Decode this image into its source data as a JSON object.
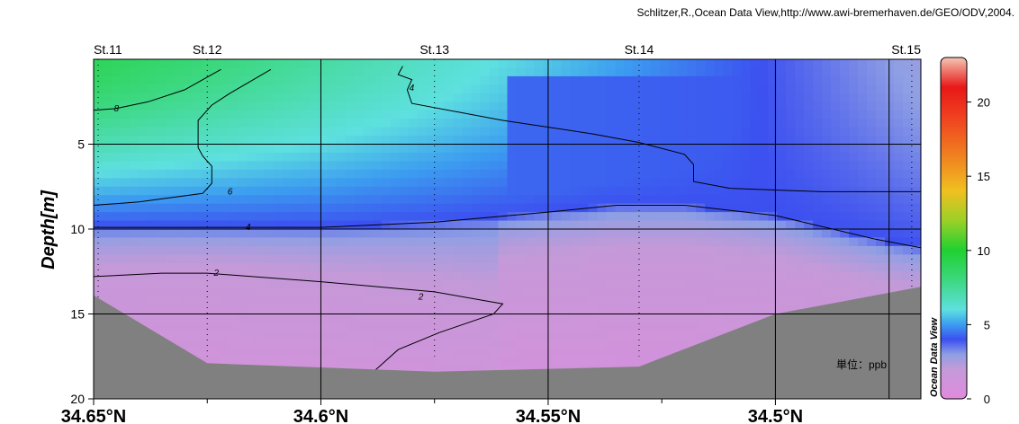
{
  "credit": "Schlitzer,R.,Ocean Data View,http://www.awi-bremerhaven.de/GEO/ODV,2004.",
  "chart_data": {
    "type": "heatmap",
    "ylabel": "Depth[m]",
    "xlabel": "",
    "xlim": [
      34.65,
      34.468
    ],
    "ylim": [
      20,
      0
    ],
    "x_ticks": [
      {
        "value": 34.65,
        "label": "34.65°N"
      },
      {
        "value": 34.6,
        "label": "34.6°N"
      },
      {
        "value": 34.55,
        "label": "34.55°N"
      },
      {
        "value": 34.5,
        "label": "34.5°N"
      }
    ],
    "y_ticks": [
      {
        "value": 5,
        "label": "5"
      },
      {
        "value": 10,
        "label": "10"
      },
      {
        "value": 15,
        "label": "15"
      },
      {
        "value": 20,
        "label": "20"
      }
    ],
    "stations": [
      {
        "name": "St.11",
        "lat": 34.649
      },
      {
        "name": "St.12",
        "lat": 34.625
      },
      {
        "name": "St.13",
        "lat": 34.575
      },
      {
        "name": "St.14",
        "lat": 34.53
      },
      {
        "name": "St.15",
        "lat": 34.47
      }
    ],
    "bottom_profile": [
      {
        "lat": 34.65,
        "depth": 13.9
      },
      {
        "lat": 34.625,
        "depth": 17.9
      },
      {
        "lat": 34.575,
        "depth": 18.4
      },
      {
        "lat": 34.53,
        "depth": 18.1
      },
      {
        "lat": 34.5,
        "depth": 15.0
      },
      {
        "lat": 34.468,
        "depth": 13.4
      }
    ],
    "contours": [
      {
        "level": 8,
        "label": "8",
        "label_at": [
          34.645,
          2.9
        ],
        "points": [
          [
            34.65,
            3.0
          ],
          [
            34.645,
            2.9
          ],
          [
            34.638,
            2.5
          ],
          [
            34.63,
            1.8
          ],
          [
            34.622,
            0.6
          ]
        ]
      },
      {
        "level": 6,
        "label": "6",
        "label_at": [
          34.62,
          7.8
        ],
        "points": [
          [
            34.65,
            8.6
          ],
          [
            34.64,
            8.4
          ],
          [
            34.626,
            7.9
          ],
          [
            34.624,
            7.3
          ],
          [
            34.624,
            6.3
          ],
          [
            34.626,
            5.7
          ],
          [
            34.627,
            5.2
          ],
          [
            34.627,
            3.6
          ],
          [
            34.624,
            2.7
          ],
          [
            34.62,
            2.0
          ],
          [
            34.611,
            0.6
          ]
        ]
      },
      {
        "level": 4,
        "label": "4",
        "label_at": [
          34.616,
          9.9
        ],
        "points": [
          [
            34.65,
            9.9
          ],
          [
            34.625,
            9.9
          ],
          [
            34.6,
            9.9
          ],
          [
            34.575,
            9.6
          ],
          [
            34.55,
            9.0
          ],
          [
            34.535,
            8.6
          ],
          [
            34.52,
            8.6
          ],
          [
            34.5,
            9.2
          ],
          [
            34.478,
            10.6
          ],
          [
            34.468,
            11.1
          ]
        ]
      },
      {
        "level": 4,
        "label": "4",
        "label_at": [
          34.58,
          1.7
        ],
        "points": [
          [
            34.582,
            0.4
          ],
          [
            34.583,
            0.9
          ],
          [
            34.58,
            1.2
          ],
          [
            34.581,
            1.8
          ],
          [
            34.58,
            2.6
          ],
          [
            34.56,
            3.6
          ],
          [
            34.54,
            4.4
          ],
          [
            34.53,
            4.9
          ],
          [
            34.52,
            5.6
          ],
          [
            34.518,
            6.2
          ],
          [
            34.518,
            7.2
          ],
          [
            34.51,
            7.6
          ],
          [
            34.49,
            7.8
          ],
          [
            34.468,
            7.8
          ]
        ]
      },
      {
        "level": 2,
        "label": "2",
        "label_at": [
          34.623,
          12.6
        ],
        "points": [
          [
            34.65,
            12.8
          ],
          [
            34.635,
            12.6
          ],
          [
            34.625,
            12.6
          ],
          [
            34.6,
            13.1
          ],
          [
            34.575,
            13.7
          ],
          [
            34.56,
            14.4
          ],
          [
            34.562,
            15.0
          ],
          [
            34.574,
            16.1
          ],
          [
            34.583,
            17.1
          ],
          [
            34.588,
            18.3
          ]
        ]
      },
      {
        "level": 2,
        "label": "2",
        "label_at": [
          34.578,
          14.0
        ],
        "points": []
      }
    ],
    "colorbar": {
      "min": 0,
      "max": 23,
      "ticks": [
        {
          "value": 0,
          "label": "0"
        },
        {
          "value": 5,
          "label": "5"
        },
        {
          "value": 10,
          "label": "10"
        },
        {
          "value": 15,
          "label": "15"
        },
        {
          "value": 20,
          "label": "20"
        }
      ],
      "colors": [
        {
          "value": 0,
          "color": "#e08ade"
        },
        {
          "value": 2,
          "color": "#c49ad8"
        },
        {
          "value": 3,
          "color": "#8f9fe4"
        },
        {
          "value": 4,
          "color": "#3c50f0"
        },
        {
          "value": 5,
          "color": "#3c9cf0"
        },
        {
          "value": 6,
          "color": "#5ee0e0"
        },
        {
          "value": 8,
          "color": "#3cd880"
        },
        {
          "value": 10,
          "color": "#20d030"
        },
        {
          "value": 12,
          "color": "#9ad028"
        },
        {
          "value": 14,
          "color": "#f0c020"
        },
        {
          "value": 16,
          "color": "#f08a20"
        },
        {
          "value": 19,
          "color": "#f04020"
        },
        {
          "value": 21,
          "color": "#e81818"
        },
        {
          "value": 23,
          "color": "#f4c6b4"
        }
      ]
    },
    "brand_label": "Ocean Data View",
    "unit_label": "単位：ppb",
    "bottom_color": "#808080",
    "grid": true
  }
}
